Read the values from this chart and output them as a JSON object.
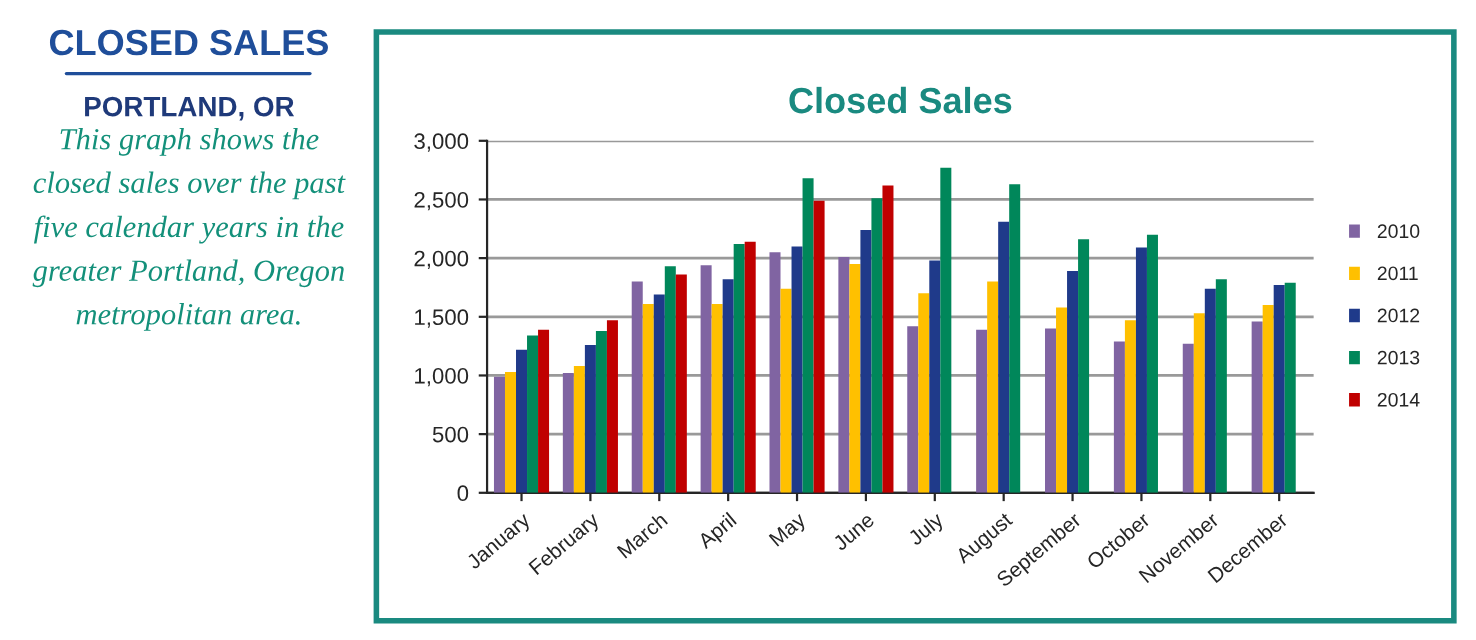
{
  "chart_data": {
    "type": "bar",
    "title": "Closed Sales",
    "annotations": [
      "CLOSED SALES",
      "PORTLAND, OR",
      "This graph shows the closed sales over the past five calendar years in the greater Portland, Oregon metropolitan area."
    ],
    "categories": [
      "January",
      "February",
      "March",
      "April",
      "May",
      "June",
      "July",
      "August",
      "September",
      "October",
      "November",
      "December"
    ],
    "series": [
      {
        "name": "2010",
        "color": "#8064a2",
        "values": [
          990,
          1020,
          1800,
          1940,
          2050,
          2010,
          1420,
          1390,
          1400,
          1290,
          1270,
          1460
        ]
      },
      {
        "name": "2011",
        "color": "#ffc000",
        "values": [
          1030,
          1080,
          1610,
          1610,
          1740,
          1950,
          1700,
          1800,
          1580,
          1470,
          1530,
          1600
        ]
      },
      {
        "name": "2012",
        "color": "#1f3a8a",
        "values": [
          1220,
          1260,
          1690,
          1820,
          2100,
          2240,
          1980,
          2310,
          1890,
          2090,
          1740,
          1770
        ]
      },
      {
        "name": "2013",
        "color": "#00875a",
        "values": [
          1340,
          1380,
          1930,
          2120,
          2680,
          2510,
          2770,
          2630,
          2160,
          2200,
          1820,
          1790
        ]
      },
      {
        "name": "2014",
        "color": "#c00000",
        "values": [
          1390,
          1470,
          1860,
          2140,
          2490,
          2620,
          null,
          null,
          null,
          null,
          null,
          null
        ]
      }
    ],
    "ylim": [
      0,
      3000
    ],
    "yticks": [
      0,
      500,
      {
        "value": 1000,
        "label": "1,000"
      },
      {
        "value": 1500,
        "label": "1,500"
      },
      {
        "value": 2000,
        "label": "2,000"
      },
      {
        "value": 2500,
        "label": "2,500"
      },
      {
        "value": 3000,
        "label": "3,000"
      }
    ],
    "grid": "y",
    "legend": "right"
  }
}
